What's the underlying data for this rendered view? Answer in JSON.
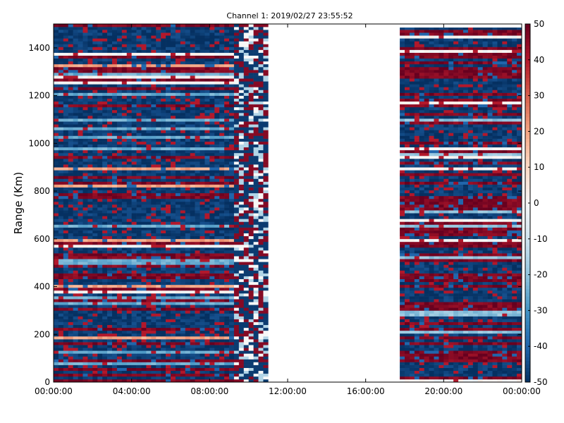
{
  "chart_data": {
    "type": "heatmap",
    "title": "Channel 1: 2019/02/27 23:55:52",
    "xlabel": "",
    "ylabel": "Range (Km)",
    "xlim": [
      "00:00:00",
      "00:00:00 (+24h)"
    ],
    "x_tick_labels": [
      "00:00:00",
      "04:00:00",
      "08:00:00",
      "12:00:00",
      "16:00:00",
      "20:00:00",
      "00:00:00"
    ],
    "ylim": [
      0,
      1500
    ],
    "y_ticks": [
      0,
      200,
      400,
      600,
      800,
      1000,
      1200,
      1400
    ],
    "colorbar": {
      "colormap": "RdBu_r",
      "range": [
        -50,
        50
      ],
      "ticks": [
        50,
        40,
        30,
        20,
        10,
        0,
        -10,
        -20,
        -30,
        -40,
        -50
      ]
    },
    "data_segments": [
      {
        "start": "00:00:00",
        "end": "09:15:00",
        "pattern": "horizontal-banded",
        "range_max_km": 1500,
        "note": "mostly strong negative (dark blue) with strong positive (dark red) bands"
      },
      {
        "start": "09:15:00",
        "end": "11:00:00",
        "pattern": "noisy",
        "range_max_km": 1500
      },
      {
        "start": "11:00:00",
        "end": "17:45:00",
        "pattern": "no-data"
      },
      {
        "start": "17:45:00",
        "end": "24:00:00",
        "pattern": "horizontal-banded",
        "range_max_km": 1485,
        "note": "mixed dark red and dark blue bands"
      }
    ],
    "grid": false,
    "legend": "none"
  }
}
